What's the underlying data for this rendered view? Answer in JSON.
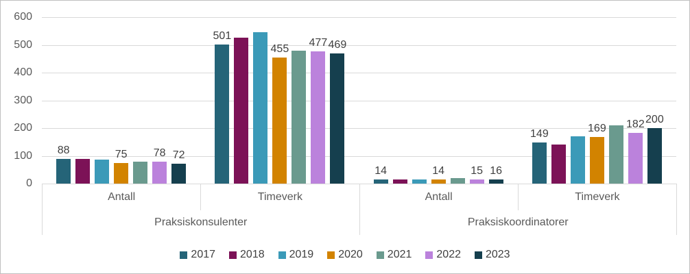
{
  "chart_data": {
    "type": "bar",
    "title": "",
    "grid": true,
    "legend_position": "bottom",
    "y_axis": {
      "min": 0,
      "max": 600,
      "step": 100,
      "tick_labels": [
        "0",
        "100",
        "200",
        "300",
        "400",
        "500",
        "600"
      ]
    },
    "series": [
      {
        "name": "2017",
        "color": "#256478",
        "labeled": true
      },
      {
        "name": "2018",
        "color": "#7c1257",
        "labeled": false
      },
      {
        "name": "2019",
        "color": "#3b9ab8",
        "labeled": false
      },
      {
        "name": "2020",
        "color": "#d28300",
        "labeled": true
      },
      {
        "name": "2021",
        "color": "#6a9a8e",
        "labeled": false
      },
      {
        "name": "2022",
        "color": "#bb82dc",
        "labeled": true
      },
      {
        "name": "2023",
        "color": "#153f4e",
        "labeled": true
      }
    ],
    "groups": [
      {
        "label": "Praksiskonsulenter",
        "subgroups": [
          {
            "label": "Antall",
            "values": [
              88,
              88,
              86,
              75,
              80,
              78,
              72
            ]
          },
          {
            "label": "Timeverk",
            "values": [
              501,
              525,
              545,
              455,
              480,
              477,
              469
            ]
          }
        ]
      },
      {
        "label": "Praksiskoordinatorer",
        "subgroups": [
          {
            "label": "Antall",
            "values": [
              14,
              14,
              14,
              14,
              20,
              15,
              16
            ]
          },
          {
            "label": "Timeverk",
            "values": [
              149,
              140,
              170,
              169,
              210,
              182,
              200
            ]
          }
        ]
      }
    ],
    "visible_data_labels": {
      "praksiskonsulenter_antall": [
        88,
        75,
        78,
        72
      ],
      "praksiskonsulenter_timeverk": [
        501,
        455,
        477,
        469
      ],
      "praksiskoordinatorer_antall": [
        14,
        14,
        15,
        16
      ],
      "praksiskoordinatorer_timeverk": [
        149,
        169,
        182,
        200
      ]
    }
  },
  "colors": {
    "gridline": "#d9d9d9",
    "axis_text": "#595959",
    "data_label_text": "#404040",
    "frame_border": "#bfbfbf",
    "background": "#ffffff"
  }
}
